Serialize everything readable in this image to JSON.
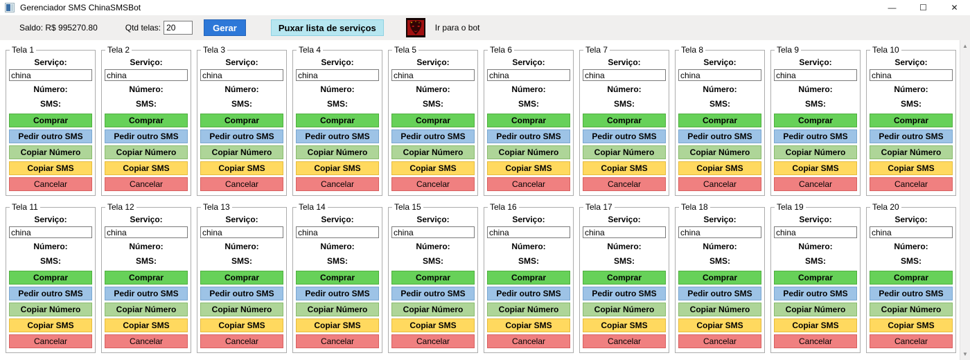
{
  "window": {
    "title": "Gerenciador SMS ChinaSMSBot",
    "controls": {
      "minimize": "—",
      "maximize": "☐",
      "close": "✕"
    }
  },
  "toolbar": {
    "saldo_label": "Saldo: R$ 995270.80",
    "qtd_label": "Qtd telas:",
    "qtd_value": "20",
    "gerar_label": "Gerar",
    "puxar_label": "Puxar lista de serviços",
    "bot_label": "Ir para o bot"
  },
  "colors": {
    "accent_blue": "#2d78d8",
    "puxar_cyan": "#b6e6f0",
    "toolbar_bg": "#f0efee"
  },
  "panel_template": {
    "servico_label": "Serviço:",
    "servico_value": "china",
    "numero_label": "Número:",
    "sms_label": "SMS:",
    "buttons": [
      {
        "name": "comprar-button",
        "label": "Comprar",
        "bg": "#67d159",
        "border": "#4fae3f",
        "bold": true
      },
      {
        "name": "pedir-outro-sms-button",
        "label": "Pedir outro SMS",
        "bg": "#9dc3e6",
        "border": "#7aa7d0",
        "bold": true
      },
      {
        "name": "copiar-numero-button",
        "label": "Copiar Número",
        "bg": "#aed598",
        "border": "#89bb6e",
        "bold": true
      },
      {
        "name": "copiar-sms-button",
        "label": "Copiar SMS",
        "bg": "#ffd95f",
        "border": "#e5bb3e",
        "bold": true
      },
      {
        "name": "cancelar-button",
        "label": "Cancelar",
        "bg": "#f08080",
        "border": "#d76060",
        "bold": false
      }
    ]
  },
  "panels": [
    {
      "title": "Tela 1"
    },
    {
      "title": "Tela 2"
    },
    {
      "title": "Tela 3"
    },
    {
      "title": "Tela 4"
    },
    {
      "title": "Tela 5"
    },
    {
      "title": "Tela 6"
    },
    {
      "title": "Tela 7"
    },
    {
      "title": "Tela 8"
    },
    {
      "title": "Tela 9"
    },
    {
      "title": "Tela 10"
    },
    {
      "title": "Tela 11"
    },
    {
      "title": "Tela 12"
    },
    {
      "title": "Tela 13"
    },
    {
      "title": "Tela 14"
    },
    {
      "title": "Tela 15"
    },
    {
      "title": "Tela 16"
    },
    {
      "title": "Tela 17"
    },
    {
      "title": "Tela 18"
    },
    {
      "title": "Tela 19"
    },
    {
      "title": "Tela 20"
    }
  ]
}
